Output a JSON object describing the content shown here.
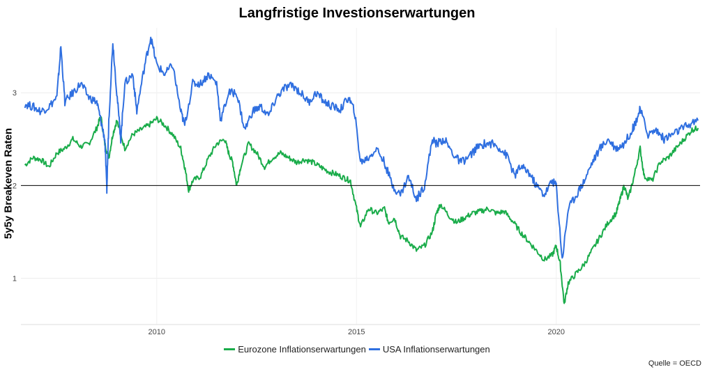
{
  "chart_data": {
    "type": "line",
    "title": "Langfristige Investionserwartungen",
    "ylabel": "5y5y Breakeven Raten",
    "xlabel": "",
    "caption": "Quelle = OECD",
    "xlim": [
      2006.6,
      2023.6
    ],
    "ylim": [
      0.5,
      3.7
    ],
    "x_ticks": [
      2010,
      2015,
      2020
    ],
    "y_ticks": [
      1,
      2,
      3
    ],
    "reference_line": 2,
    "grid": true,
    "legend_position": "bottom",
    "series": [
      {
        "name": "Eurozone Inflationserwartungen",
        "color": "#1aac4a",
        "points": [
          [
            2006.7,
            2.22
          ],
          [
            2006.9,
            2.3
          ],
          [
            2007.1,
            2.28
          ],
          [
            2007.3,
            2.2
          ],
          [
            2007.5,
            2.35
          ],
          [
            2007.7,
            2.4
          ],
          [
            2007.9,
            2.5
          ],
          [
            2008.1,
            2.42
          ],
          [
            2008.3,
            2.45
          ],
          [
            2008.5,
            2.62
          ],
          [
            2008.6,
            2.75
          ],
          [
            2008.7,
            2.45
          ],
          [
            2008.8,
            2.3
          ],
          [
            2008.9,
            2.55
          ],
          [
            2009.0,
            2.7
          ],
          [
            2009.2,
            2.4
          ],
          [
            2009.4,
            2.55
          ],
          [
            2009.6,
            2.6
          ],
          [
            2009.8,
            2.65
          ],
          [
            2010.0,
            2.72
          ],
          [
            2010.2,
            2.65
          ],
          [
            2010.4,
            2.55
          ],
          [
            2010.6,
            2.4
          ],
          [
            2010.7,
            2.2
          ],
          [
            2010.8,
            1.95
          ],
          [
            2010.9,
            2.05
          ],
          [
            2011.1,
            2.1
          ],
          [
            2011.3,
            2.3
          ],
          [
            2011.5,
            2.45
          ],
          [
            2011.7,
            2.5
          ],
          [
            2011.8,
            2.35
          ],
          [
            2011.9,
            2.25
          ],
          [
            2012.0,
            2.0
          ],
          [
            2012.1,
            2.2
          ],
          [
            2012.3,
            2.45
          ],
          [
            2012.5,
            2.35
          ],
          [
            2012.7,
            2.2
          ],
          [
            2012.9,
            2.3
          ],
          [
            2013.1,
            2.35
          ],
          [
            2013.3,
            2.3
          ],
          [
            2013.5,
            2.25
          ],
          [
            2013.7,
            2.28
          ],
          [
            2013.9,
            2.25
          ],
          [
            2014.1,
            2.2
          ],
          [
            2014.3,
            2.15
          ],
          [
            2014.5,
            2.12
          ],
          [
            2014.7,
            2.08
          ],
          [
            2014.85,
            2.05
          ],
          [
            2015.0,
            1.75
          ],
          [
            2015.1,
            1.55
          ],
          [
            2015.3,
            1.75
          ],
          [
            2015.5,
            1.7
          ],
          [
            2015.7,
            1.75
          ],
          [
            2015.8,
            1.6
          ],
          [
            2015.95,
            1.65
          ],
          [
            2016.1,
            1.45
          ],
          [
            2016.3,
            1.4
          ],
          [
            2016.5,
            1.3
          ],
          [
            2016.7,
            1.35
          ],
          [
            2016.9,
            1.5
          ],
          [
            2017.0,
            1.7
          ],
          [
            2017.1,
            1.8
          ],
          [
            2017.3,
            1.68
          ],
          [
            2017.5,
            1.6
          ],
          [
            2017.7,
            1.65
          ],
          [
            2017.9,
            1.7
          ],
          [
            2018.1,
            1.72
          ],
          [
            2018.3,
            1.75
          ],
          [
            2018.5,
            1.7
          ],
          [
            2018.7,
            1.72
          ],
          [
            2018.9,
            1.62
          ],
          [
            2019.1,
            1.5
          ],
          [
            2019.3,
            1.4
          ],
          [
            2019.5,
            1.3
          ],
          [
            2019.7,
            1.2
          ],
          [
            2019.9,
            1.25
          ],
          [
            2020.0,
            1.35
          ],
          [
            2020.1,
            1.15
          ],
          [
            2020.2,
            0.72
          ],
          [
            2020.3,
            0.95
          ],
          [
            2020.5,
            1.05
          ],
          [
            2020.7,
            1.15
          ],
          [
            2020.9,
            1.3
          ],
          [
            2021.1,
            1.45
          ],
          [
            2021.3,
            1.6
          ],
          [
            2021.5,
            1.7
          ],
          [
            2021.6,
            1.85
          ],
          [
            2021.7,
            2.0
          ],
          [
            2021.8,
            1.85
          ],
          [
            2021.95,
            2.1
          ],
          [
            2022.1,
            2.4
          ],
          [
            2022.2,
            2.1
          ],
          [
            2022.4,
            2.05
          ],
          [
            2022.6,
            2.25
          ],
          [
            2022.8,
            2.3
          ],
          [
            2023.0,
            2.4
          ],
          [
            2023.2,
            2.5
          ],
          [
            2023.4,
            2.6
          ],
          [
            2023.55,
            2.62
          ]
        ]
      },
      {
        "name": "USA Inflationserwartungen",
        "color": "#2f6fe0",
        "points": [
          [
            2006.7,
            2.88
          ],
          [
            2006.9,
            2.85
          ],
          [
            2007.1,
            2.8
          ],
          [
            2007.3,
            2.85
          ],
          [
            2007.5,
            2.95
          ],
          [
            2007.6,
            3.5
          ],
          [
            2007.7,
            2.9
          ],
          [
            2007.9,
            3.0
          ],
          [
            2008.1,
            3.1
          ],
          [
            2008.3,
            2.95
          ],
          [
            2008.5,
            2.9
          ],
          [
            2008.6,
            2.7
          ],
          [
            2008.7,
            2.5
          ],
          [
            2008.75,
            1.95
          ],
          [
            2008.8,
            2.7
          ],
          [
            2008.9,
            3.55
          ],
          [
            2009.0,
            3.0
          ],
          [
            2009.1,
            2.5
          ],
          [
            2009.2,
            3.1
          ],
          [
            2009.4,
            3.2
          ],
          [
            2009.5,
            2.8
          ],
          [
            2009.7,
            3.3
          ],
          [
            2009.85,
            3.6
          ],
          [
            2010.0,
            3.3
          ],
          [
            2010.2,
            3.2
          ],
          [
            2010.4,
            3.3
          ],
          [
            2010.6,
            2.8
          ],
          [
            2010.7,
            2.65
          ],
          [
            2010.9,
            3.1
          ],
          [
            2011.1,
            3.1
          ],
          [
            2011.3,
            3.2
          ],
          [
            2011.5,
            3.1
          ],
          [
            2011.6,
            2.7
          ],
          [
            2011.8,
            3.0
          ],
          [
            2012.0,
            3.0
          ],
          [
            2012.2,
            2.6
          ],
          [
            2012.4,
            2.8
          ],
          [
            2012.6,
            2.85
          ],
          [
            2012.8,
            2.75
          ],
          [
            2013.0,
            2.95
          ],
          [
            2013.2,
            3.05
          ],
          [
            2013.4,
            3.08
          ],
          [
            2013.6,
            3.0
          ],
          [
            2013.8,
            2.9
          ],
          [
            2014.0,
            3.0
          ],
          [
            2014.2,
            2.9
          ],
          [
            2014.4,
            2.85
          ],
          [
            2014.6,
            2.82
          ],
          [
            2014.8,
            2.95
          ],
          [
            2014.95,
            2.8
          ],
          [
            2015.1,
            2.25
          ],
          [
            2015.3,
            2.3
          ],
          [
            2015.5,
            2.4
          ],
          [
            2015.7,
            2.25
          ],
          [
            2015.9,
            2.0
          ],
          [
            2016.1,
            1.9
          ],
          [
            2016.3,
            2.1
          ],
          [
            2016.5,
            1.85
          ],
          [
            2016.7,
            2.0
          ],
          [
            2016.9,
            2.5
          ],
          [
            2017.0,
            2.45
          ],
          [
            2017.2,
            2.5
          ],
          [
            2017.4,
            2.35
          ],
          [
            2017.6,
            2.25
          ],
          [
            2017.8,
            2.3
          ],
          [
            2018.0,
            2.4
          ],
          [
            2018.2,
            2.45
          ],
          [
            2018.4,
            2.45
          ],
          [
            2018.6,
            2.4
          ],
          [
            2018.8,
            2.3
          ],
          [
            2018.95,
            2.1
          ],
          [
            2019.1,
            2.2
          ],
          [
            2019.3,
            2.15
          ],
          [
            2019.5,
            2.0
          ],
          [
            2019.7,
            1.9
          ],
          [
            2019.9,
            2.05
          ],
          [
            2020.0,
            2.0
          ],
          [
            2020.15,
            1.2
          ],
          [
            2020.3,
            1.75
          ],
          [
            2020.5,
            1.9
          ],
          [
            2020.7,
            2.05
          ],
          [
            2020.9,
            2.25
          ],
          [
            2021.1,
            2.4
          ],
          [
            2021.3,
            2.5
          ],
          [
            2021.5,
            2.4
          ],
          [
            2021.7,
            2.45
          ],
          [
            2021.9,
            2.6
          ],
          [
            2022.0,
            2.7
          ],
          [
            2022.1,
            2.82
          ],
          [
            2022.3,
            2.55
          ],
          [
            2022.5,
            2.6
          ],
          [
            2022.7,
            2.5
          ],
          [
            2022.9,
            2.55
          ],
          [
            2023.1,
            2.6
          ],
          [
            2023.3,
            2.65
          ],
          [
            2023.55,
            2.7
          ]
        ]
      }
    ]
  }
}
